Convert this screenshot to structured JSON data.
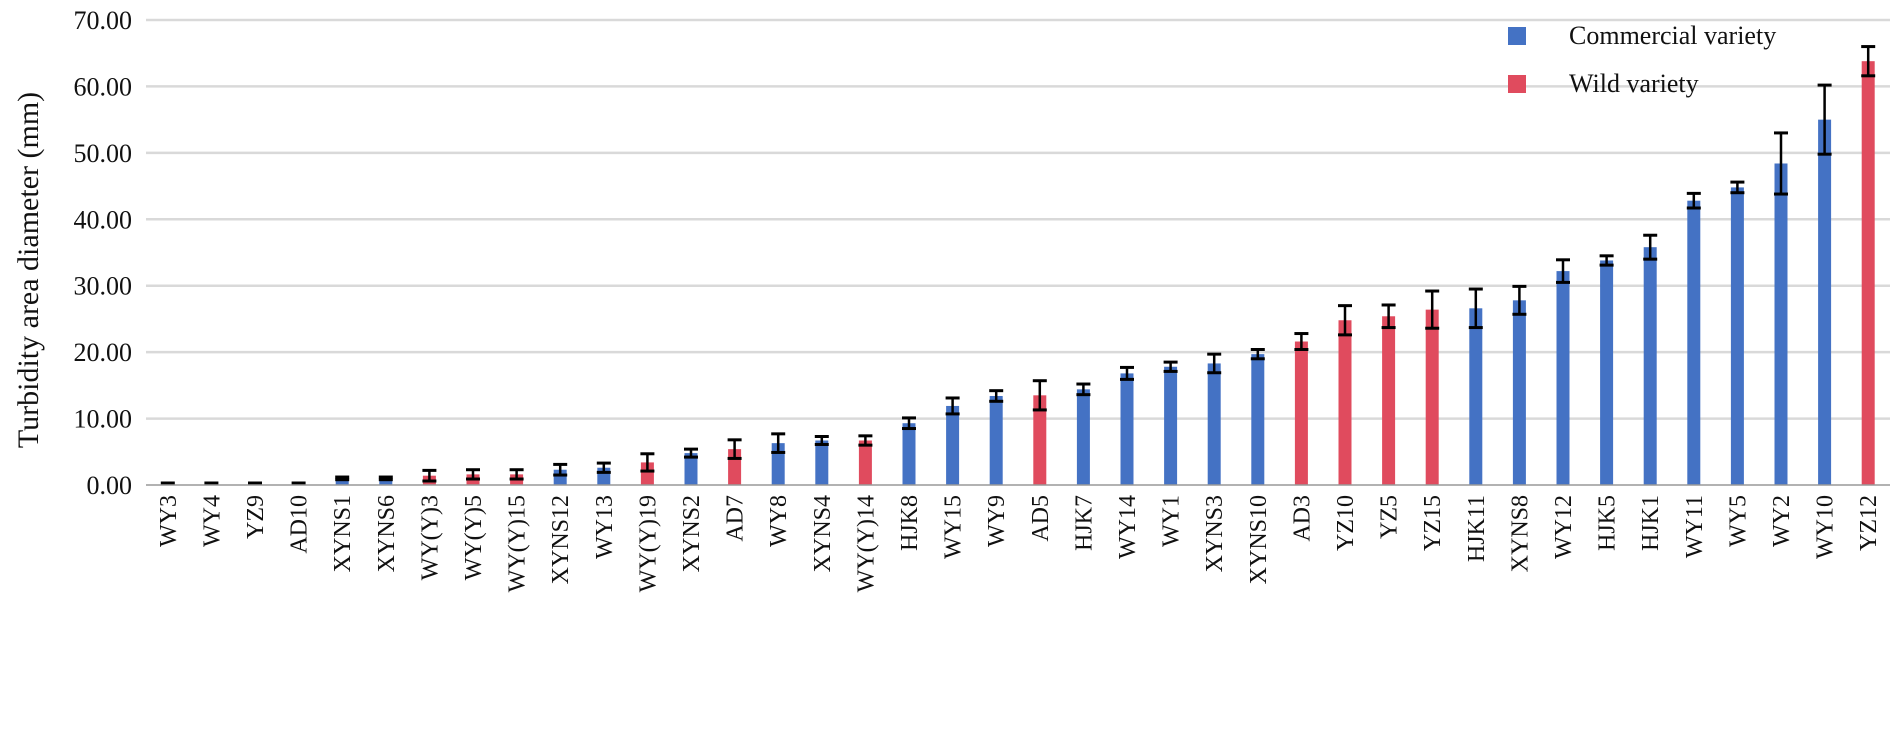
{
  "chart_data": {
    "type": "bar",
    "title": "",
    "xlabel": "",
    "ylabel": "Turbidity area diameter (mm)",
    "ylim": [
      0,
      70
    ],
    "yticks": [
      "0.00",
      "10.00",
      "20.00",
      "30.00",
      "40.00",
      "50.00",
      "60.00",
      "70.00"
    ],
    "grid": true,
    "legend_position": "top-right",
    "legend": [
      {
        "name": "Commercial variety",
        "color": "#4472C4"
      },
      {
        "name": "Wild variety",
        "color": "#E04B5E"
      }
    ],
    "categories": [
      "WY3",
      "WY4",
      "YZ9",
      "AD10",
      "XYNS1",
      "XYNS6",
      "WY(Y)3",
      "WY(Y)5",
      "WY(Y)15",
      "XYNS12",
      "WY13",
      "WY(Y)19",
      "XYNS2",
      "AD7",
      "WY8",
      "XYNS4",
      "WY(Y)14",
      "HJK8",
      "WY15",
      "WY9",
      "AD5",
      "HJK7",
      "WY14",
      "WY1",
      "XYNS3",
      "XYNS10",
      "AD3",
      "YZ10",
      "YZ5",
      "YZ15",
      "HJK11",
      "XYNS8",
      "WY12",
      "HJK5",
      "HJK1",
      "WY11",
      "WY5",
      "WY2",
      "WY10",
      "YZ12"
    ],
    "values": [
      0.3,
      0.3,
      0.3,
      0.3,
      1.0,
      1.0,
      1.4,
      1.6,
      1.6,
      2.3,
      2.6,
      3.4,
      4.8,
      5.4,
      6.3,
      6.7,
      6.7,
      9.3,
      11.9,
      13.4,
      13.5,
      14.4,
      16.8,
      17.8,
      18.3,
      19.7,
      21.6,
      24.8,
      25.4,
      26.4,
      26.6,
      27.8,
      32.2,
      33.8,
      35.8,
      42.8,
      44.8,
      48.4,
      55.0,
      63.8
    ],
    "errors": [
      0,
      0,
      0,
      0,
      0.2,
      0.2,
      0.8,
      0.7,
      0.7,
      0.8,
      0.7,
      1.3,
      0.6,
      1.4,
      1.4,
      0.6,
      0.7,
      0.8,
      1.2,
      0.8,
      2.2,
      0.8,
      0.9,
      0.7,
      1.4,
      0.7,
      1.2,
      2.2,
      1.7,
      2.8,
      2.9,
      2.1,
      1.7,
      0.7,
      1.8,
      1.1,
      0.8,
      4.6,
      5.2,
      2.2
    ],
    "variety": [
      "wild",
      "commercial",
      "commercial",
      "wild",
      "commercial",
      "commercial",
      "wild",
      "wild",
      "wild",
      "commercial",
      "commercial",
      "wild",
      "commercial",
      "wild",
      "commercial",
      "commercial",
      "wild",
      "commercial",
      "commercial",
      "commercial",
      "wild",
      "commercial",
      "commercial",
      "commercial",
      "commercial",
      "commercial",
      "wild",
      "wild",
      "wild",
      "wild",
      "commercial",
      "commercial",
      "commercial",
      "commercial",
      "commercial",
      "commercial",
      "commercial",
      "commercial",
      "commercial",
      "wild"
    ]
  }
}
